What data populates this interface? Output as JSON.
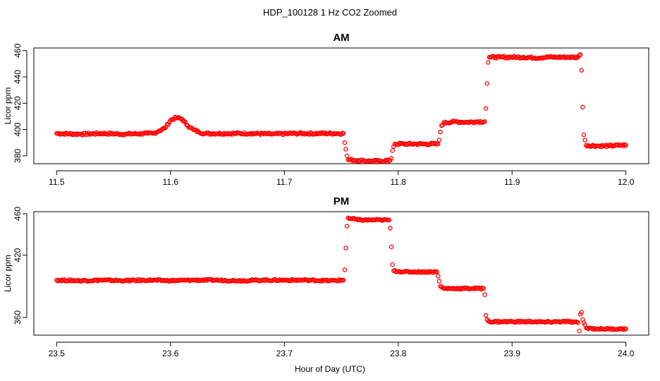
{
  "figure": {
    "title": "HDP_100128  1 Hz CO2 Zoomed",
    "xlabel": "Hour of Day (UTC)"
  },
  "style": {
    "point_color": "#ff0000",
    "axis_color": "#000000",
    "background": "#ffffff"
  },
  "chart_data": [
    {
      "type": "scatter",
      "title": "AM",
      "ylabel": "Licor ppm",
      "xlim": [
        11.5,
        12.0
      ],
      "ylim": [
        374,
        462
      ],
      "xticks": [
        "11.5",
        "11.6",
        "11.7",
        "11.8",
        "11.9",
        "12.0"
      ],
      "xtick_values": [
        11.5,
        11.6,
        11.7,
        11.8,
        11.9,
        12.0
      ],
      "yticks": [
        "380",
        "400",
        "420",
        "440",
        "460"
      ],
      "ytick_values": [
        380,
        400,
        420,
        440,
        460
      ],
      "grid": false,
      "series": [
        {
          "marker": "open-circle",
          "points": [
            [
              11.5,
              397
            ],
            [
              11.52,
              396.5
            ],
            [
              11.54,
              397
            ],
            [
              11.56,
              396.5
            ],
            [
              11.58,
              397
            ],
            [
              11.585,
              397
            ],
            [
              11.59,
              399
            ],
            [
              11.595,
              401
            ],
            [
              11.6,
              407
            ],
            [
              11.605,
              409
            ],
            [
              11.61,
              408
            ],
            [
              11.615,
              403
            ],
            [
              11.62,
              400
            ],
            [
              11.625,
              398
            ],
            [
              11.63,
              397
            ],
            [
              11.65,
              397
            ],
            [
              11.67,
              397
            ],
            [
              11.69,
              396.5
            ],
            [
              11.71,
              397
            ],
            [
              11.73,
              397
            ],
            [
              11.752,
              397
            ],
            [
              11.753,
              390
            ],
            [
              11.754,
              385
            ],
            [
              11.755,
              380
            ],
            [
              11.756,
              377
            ],
            [
              11.765,
              376.5
            ],
            [
              11.775,
              376
            ],
            [
              11.785,
              376
            ],
            [
              11.793,
              376.5
            ],
            [
              11.794,
              378
            ],
            [
              11.795,
              384
            ],
            [
              11.796,
              387
            ],
            [
              11.797,
              389
            ],
            [
              11.805,
              389
            ],
            [
              11.815,
              389
            ],
            [
              11.825,
              389
            ],
            [
              11.835,
              389
            ],
            [
              11.836,
              392
            ],
            [
              11.837,
              398
            ],
            [
              11.838,
              403
            ],
            [
              11.84,
              405
            ],
            [
              11.85,
              406
            ],
            [
              11.86,
              405.5
            ],
            [
              11.87,
              406
            ],
            [
              11.876,
              406
            ],
            [
              11.877,
              416
            ],
            [
              11.878,
              435
            ],
            [
              11.879,
              451
            ],
            [
              11.88,
              455
            ],
            [
              11.89,
              455
            ],
            [
              11.9,
              455
            ],
            [
              11.91,
              455
            ],
            [
              11.92,
              454.5
            ],
            [
              11.93,
              455
            ],
            [
              11.94,
              455
            ],
            [
              11.95,
              455
            ],
            [
              11.958,
              455
            ],
            [
              11.96,
              457
            ],
            [
              11.961,
              445
            ],
            [
              11.962,
              417
            ],
            [
              11.963,
              396
            ],
            [
              11.964,
              392
            ],
            [
              11.965,
              388
            ],
            [
              11.975,
              387.5
            ],
            [
              11.985,
              387.5
            ],
            [
              11.995,
              388
            ],
            [
              12.0,
              388
            ]
          ]
        }
      ]
    },
    {
      "type": "scatter",
      "title": "PM",
      "ylabel": "Licor ppm",
      "xlim": [
        23.5,
        24.0
      ],
      "ylim": [
        343,
        462
      ],
      "xticks": [
        "23.5",
        "23.6",
        "23.7",
        "23.8",
        "23.9",
        "24.0"
      ],
      "xtick_values": [
        23.5,
        23.6,
        23.7,
        23.8,
        23.9,
        24.0
      ],
      "yticks": [
        "360",
        "420",
        "460"
      ],
      "ytick_values": [
        360,
        420,
        460
      ],
      "grid": false,
      "series": [
        {
          "marker": "open-circle",
          "points": [
            [
              23.5,
              396
            ],
            [
              23.52,
              395.5
            ],
            [
              23.54,
              396
            ],
            [
              23.56,
              395.5
            ],
            [
              23.58,
              396
            ],
            [
              23.6,
              395.5
            ],
            [
              23.62,
              396
            ],
            [
              23.64,
              396
            ],
            [
              23.66,
              395.5
            ],
            [
              23.68,
              396
            ],
            [
              23.7,
              396
            ],
            [
              23.72,
              396
            ],
            [
              23.74,
              395.5
            ],
            [
              23.752,
              396
            ],
            [
              23.753,
              406
            ],
            [
              23.754,
              427
            ],
            [
              23.755,
              448
            ],
            [
              23.756,
              456
            ],
            [
              23.765,
              454
            ],
            [
              23.775,
              454
            ],
            [
              23.785,
              454
            ],
            [
              23.792,
              454
            ],
            [
              23.793,
              446
            ],
            [
              23.794,
              428
            ],
            [
              23.795,
              411
            ],
            [
              23.796,
              405
            ],
            [
              23.805,
              404
            ],
            [
              23.815,
              404
            ],
            [
              23.825,
              404
            ],
            [
              23.834,
              404
            ],
            [
              23.835,
              400
            ],
            [
              23.836,
              395
            ],
            [
              23.837,
              390
            ],
            [
              23.84,
              388
            ],
            [
              23.85,
              388
            ],
            [
              23.86,
              388
            ],
            [
              23.87,
              388
            ],
            [
              23.875,
              388
            ],
            [
              23.876,
              382
            ],
            [
              23.877,
              362
            ],
            [
              23.878,
              358
            ],
            [
              23.88,
              356
            ],
            [
              23.89,
              356
            ],
            [
              23.9,
              356
            ],
            [
              23.91,
              356
            ],
            [
              23.92,
              356
            ],
            [
              23.93,
              355.5
            ],
            [
              23.94,
              356
            ],
            [
              23.95,
              356
            ],
            [
              23.958,
              355
            ],
            [
              23.959,
              347
            ],
            [
              23.96,
              363
            ],
            [
              23.961,
              365
            ],
            [
              23.962,
              358
            ],
            [
              23.965,
              350
            ],
            [
              23.975,
              349
            ],
            [
              23.985,
              349
            ],
            [
              23.995,
              349
            ],
            [
              24.0,
              349
            ]
          ]
        }
      ]
    }
  ]
}
